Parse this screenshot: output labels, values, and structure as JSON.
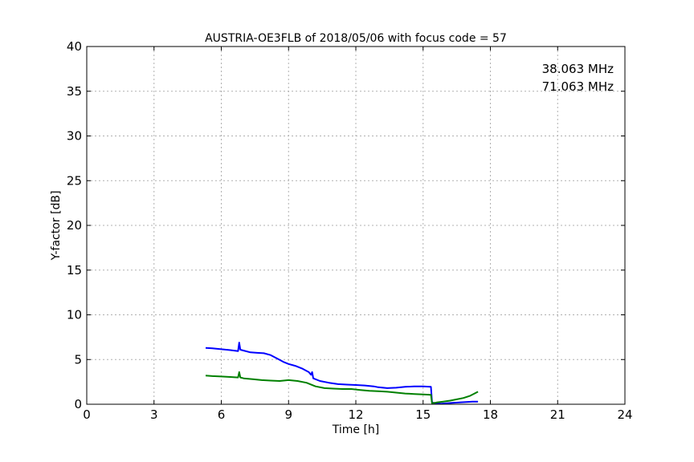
{
  "chart_data": {
    "type": "line",
    "title": "AUSTRIA-OE3FLB of 2018/05/06 with focus code = 57",
    "xlabel": "Time [h]",
    "ylabel": "Y-factor [dB]",
    "xlim": [
      0,
      24
    ],
    "ylim": [
      0,
      40
    ],
    "xticks": [
      0,
      3,
      6,
      9,
      12,
      15,
      18,
      21,
      24
    ],
    "yticks": [
      0,
      5,
      10,
      15,
      20,
      25,
      30,
      35,
      40
    ],
    "grid": true,
    "legend_placement": "top-right",
    "series": [
      {
        "name": "38.063 MHz",
        "color": "#0000ff",
        "x": [
          5.3,
          5.6,
          6.0,
          6.4,
          6.75,
          6.8,
          6.85,
          7.0,
          7.3,
          7.6,
          7.9,
          8.2,
          8.5,
          8.8,
          9.0,
          9.3,
          9.6,
          9.9,
          10.0,
          10.05,
          10.1,
          10.4,
          10.8,
          11.2,
          11.6,
          12.0,
          12.4,
          12.8,
          13.0,
          13.4,
          13.8,
          14.2,
          14.6,
          15.0,
          15.35,
          15.4,
          15.6,
          15.8,
          16.0,
          16.3,
          16.6,
          16.9,
          17.2,
          17.45
        ],
        "y": [
          6.3,
          6.25,
          6.15,
          6.05,
          5.95,
          6.9,
          6.1,
          6.0,
          5.8,
          5.75,
          5.7,
          5.5,
          5.1,
          4.7,
          4.5,
          4.3,
          4.0,
          3.6,
          3.3,
          3.6,
          2.9,
          2.6,
          2.4,
          2.25,
          2.2,
          2.15,
          2.1,
          2.0,
          1.9,
          1.8,
          1.85,
          1.95,
          2.0,
          2.0,
          1.95,
          0.2,
          0.1,
          0.05,
          0.1,
          0.15,
          0.2,
          0.25,
          0.3,
          0.3
        ]
      },
      {
        "name": "71.063 MHz",
        "color": "#008000",
        "x": [
          5.3,
          5.6,
          6.0,
          6.4,
          6.75,
          6.8,
          6.85,
          7.0,
          7.4,
          7.8,
          8.2,
          8.6,
          9.0,
          9.4,
          9.8,
          10.2,
          10.6,
          11.0,
          11.4,
          11.8,
          12.2,
          12.6,
          13.0,
          13.4,
          13.8,
          14.2,
          14.6,
          15.0,
          15.35,
          15.4,
          15.6,
          15.9,
          16.2,
          16.5,
          16.8,
          17.1,
          17.45
        ],
        "y": [
          3.2,
          3.15,
          3.1,
          3.05,
          3.0,
          3.6,
          3.0,
          2.9,
          2.8,
          2.7,
          2.65,
          2.6,
          2.7,
          2.6,
          2.4,
          2.0,
          1.8,
          1.75,
          1.7,
          1.7,
          1.6,
          1.5,
          1.45,
          1.4,
          1.3,
          1.2,
          1.15,
          1.1,
          1.05,
          0.1,
          0.2,
          0.3,
          0.4,
          0.55,
          0.7,
          0.95,
          1.4
        ]
      }
    ]
  }
}
